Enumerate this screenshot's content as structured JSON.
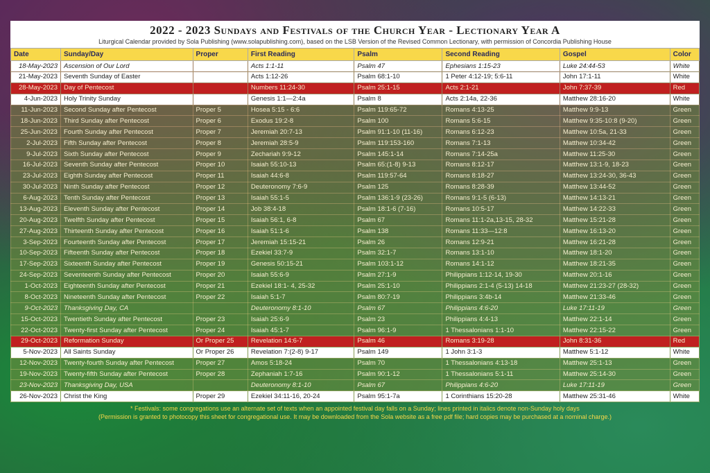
{
  "header": {
    "title": "2022 - 2023 Sundays and Festivals of the Church Year - Lectionary Year A",
    "subtitle": "Liturgical Calendar provided by Sola Publishing (www.solapublishing.com), based on the LSB Version of the Revised Common Lectionary, with permission of Concordia Publishing House"
  },
  "columns": [
    "Date",
    "Sunday/Day",
    "Proper",
    "First Reading",
    "Psalm",
    "Second Reading",
    "Gospel",
    "Color"
  ],
  "rows": [
    {
      "cls": "white italic",
      "c": [
        "18-May-2023",
        "Ascension of Our Lord",
        "",
        "Acts 1:1-11",
        "Psalm 47",
        "Ephesians 1:15-23",
        "Luke 24:44-53",
        "White"
      ]
    },
    {
      "cls": "white",
      "c": [
        "21-May-2023",
        "Seventh Sunday of Easter",
        "",
        "Acts 1:12-26",
        "Psalm 68:1-10",
        "1 Peter 4:12-19; 5:6-11",
        "John 17:1-11",
        "White"
      ]
    },
    {
      "cls": "red",
      "c": [
        "28-May-2023",
        "Day of Pentecost",
        "",
        "Numbers 11:24-30",
        "Psalm 25:1-15",
        "Acts 2:1-21",
        "John 7:37-39",
        "Red"
      ]
    },
    {
      "cls": "white",
      "c": [
        "4-Jun-2023",
        "Holy Trinity Sunday",
        "",
        "Genesis 1:1—2:4a",
        "Psalm 8",
        "Acts 2:14a, 22-36",
        "Matthew 28:16-20",
        "White"
      ]
    },
    {
      "cls": "green",
      "c": [
        "11-Jun-2023",
        "Second Sunday after Pentecost",
        "Proper 5",
        "Hosea 5:15 - 6:6",
        "Psalm 119:65-72",
        "Romans 4:13-25",
        "Matthew 9:9-13",
        "Green"
      ]
    },
    {
      "cls": "green",
      "c": [
        "18-Jun-2023",
        "Third Sunday after Pentecost",
        "Proper 6",
        "Exodus 19:2-8",
        "Psalm 100",
        "Romans 5:6-15",
        "Matthew 9:35-10:8 (9-20)",
        "Green"
      ]
    },
    {
      "cls": "green",
      "c": [
        "25-Jun-2023",
        "Fourth Sunday after Pentecost",
        "Proper 7",
        "Jeremiah 20:7-13",
        "Psalm 91:1-10 (11-16)",
        "Romans 6:12-23",
        "Matthew 10:5a, 21-33",
        "Green"
      ]
    },
    {
      "cls": "green",
      "c": [
        "2-Jul-2023",
        "Fifth Sunday after Pentecost",
        "Proper 8",
        "Jeremiah 28:5-9",
        "Psalm 119:153-160",
        "Romans 7:1-13",
        "Matthew 10:34-42",
        "Green"
      ]
    },
    {
      "cls": "green",
      "c": [
        "9-Jul-2023",
        "Sixth Sunday after Pentecost",
        "Proper 9",
        "Zechariah 9:9-12",
        "Psalm 145:1-14",
        "Romans 7:14-25a",
        "Matthew 11:25-30",
        "Green"
      ]
    },
    {
      "cls": "green",
      "c": [
        "16-Jul-2023",
        "Seventh Sunday after Pentecost",
        "Proper 10",
        "Isaiah 55:10-13",
        "Psalm 65:(1-8) 9-13",
        "Romans 8:12-17",
        "Matthew 13:1-9, 18-23",
        "Green"
      ]
    },
    {
      "cls": "green",
      "c": [
        "23-Jul-2023",
        "Eighth Sunday after Pentecost",
        "Proper 11",
        "Isaiah 44:6-8",
        "Psalm 119:57-64",
        "Romans 8:18-27",
        "Matthew 13:24-30, 36-43",
        "Green"
      ]
    },
    {
      "cls": "green",
      "c": [
        "30-Jul-2023",
        "Ninth Sunday after Pentecost",
        "Proper 12",
        "Deuteronomy 7:6-9",
        "Psalm 125",
        "Romans 8:28-39",
        "Matthew 13:44-52",
        "Green"
      ]
    },
    {
      "cls": "green",
      "c": [
        "6-Aug-2023",
        "Tenth Sunday after Pentecost",
        "Proper 13",
        "Isaiah 55:1-5",
        "Psalm 136:1-9 (23-26)",
        "Romans 9:1-5 (6-13)",
        "Matthew 14:13-21",
        "Green"
      ]
    },
    {
      "cls": "green",
      "c": [
        "13-Aug-2023",
        "Eleventh Sunday after Pentecost",
        "Proper 14",
        "Job 38:4-18",
        "Psalm 18:1-6 (7-16)",
        "Romans 10:5-17",
        "Matthew 14:22-33",
        "Green"
      ]
    },
    {
      "cls": "green",
      "c": [
        "20-Aug-2023",
        "Twelfth Sunday after Pentecost",
        "Proper 15",
        "Isaiah 56:1, 6-8",
        "Psalm 67",
        "Romans 11:1-2a,13-15, 28-32",
        "Matthew 15:21-28",
        "Green"
      ]
    },
    {
      "cls": "green",
      "c": [
        "27-Aug-2023",
        "Thirteenth Sunday after Pentecost",
        "Proper 16",
        "Isaiah 51:1-6",
        "Psalm 138",
        "Romans 11:33—12:8",
        "Matthew 16:13-20",
        "Green"
      ]
    },
    {
      "cls": "green",
      "c": [
        "3-Sep-2023",
        "Fourteenth Sunday after Pentecost",
        "Proper 17",
        "Jeremiah 15:15-21",
        "Psalm 26",
        "Romans 12:9-21",
        "Matthew 16:21-28",
        "Green"
      ]
    },
    {
      "cls": "green",
      "c": [
        "10-Sep-2023",
        "Fifteenth Sunday after Pentecost",
        "Proper 18",
        "Ezekiel 33:7-9",
        "Psalm 32:1-7",
        "Romans 13:1-10",
        "Matthew 18:1-20",
        "Green"
      ]
    },
    {
      "cls": "green",
      "c": [
        "17-Sep-2023",
        "Sixteenth Sunday after Pentecost",
        "Proper 19",
        "Genesis 50:15-21",
        "Psalm 103:1-12",
        "Romans 14:1-12",
        "Matthew 18:21-35",
        "Green"
      ]
    },
    {
      "cls": "green",
      "c": [
        "24-Sep-2023",
        "Seventeenth Sunday after Pentecost",
        "Proper 20",
        "Isaiah 55:6-9",
        "Psalm 27:1-9",
        "Philippians 1:12-14, 19-30",
        "Matthew 20:1-16",
        "Green"
      ]
    },
    {
      "cls": "green",
      "c": [
        "1-Oct-2023",
        "Eighteenth Sunday after Pentecost",
        "Proper 21",
        "Ezekiel 18:1- 4, 25-32",
        "Psalm 25:1-10",
        "Philippians 2:1-4 (5-13) 14-18",
        "Matthew 21:23-27 (28-32)",
        "Green"
      ]
    },
    {
      "cls": "green",
      "c": [
        "8-Oct-2023",
        "Nineteenth Sunday after Pentecost",
        "Proper 22",
        "Isaiah 5:1-7",
        "Psalm 80:7-19",
        "Philippians 3:4b-14",
        "Matthew 21:33-46",
        "Green"
      ]
    },
    {
      "cls": "green italic",
      "c": [
        "9-Oct-2023",
        "Thanksgiving Day, CA",
        "",
        "Deuteronomy 8:1-10",
        "Psalm 67",
        "Philippians 4:6-20",
        "Luke 17:11-19",
        "Green"
      ]
    },
    {
      "cls": "green",
      "c": [
        "15-Oct-2023",
        "Twentieth Sunday after Pentecost",
        "Proper 23",
        "Isaiah 25:6-9",
        "Psalm 23",
        "Philippians 4:4-13",
        "Matthew 22:1-14",
        "Green"
      ]
    },
    {
      "cls": "green",
      "c": [
        "22-Oct-2023",
        "Twenty-first Sunday after Pentecost",
        "Proper 24",
        "Isaiah 45:1-7",
        "Psalm 96:1-9",
        "1 Thessalonians 1:1-10",
        "Matthew 22:15-22",
        "Green"
      ]
    },
    {
      "cls": "red",
      "c": [
        "29-Oct-2023",
        "Reformation Sunday",
        "Or Proper 25",
        "Revelation 14:6-7",
        "Psalm 46",
        "Romans 3:19-28",
        "John 8:31-36",
        "Red"
      ]
    },
    {
      "cls": "white",
      "c": [
        "5-Nov-2023",
        "All Saints Sunday",
        "Or Proper 26",
        "Revelation 7:(2-8) 9-17",
        "Psalm 149",
        "1 John 3:1-3",
        "Matthew 5:1-12",
        "White"
      ]
    },
    {
      "cls": "green",
      "c": [
        "12-Nov-2023",
        "Twenty-fourth Sunday after Pentecost",
        "Proper 27",
        "Amos 5:18-24",
        "Psalm 70",
        "1 Thessalonians 4:13-18",
        "Matthew 25:1-13",
        "Green"
      ]
    },
    {
      "cls": "green",
      "c": [
        "19-Nov-2023",
        "Twenty-fifth Sunday after Pentecost",
        "Proper 28",
        "Zephaniah 1:7-16",
        "Psalm 90:1-12",
        "1 Thessalonians 5:1-11",
        "Matthew 25:14-30",
        "Green"
      ]
    },
    {
      "cls": "green italic",
      "c": [
        "23-Nov-2023",
        "Thanksgiving Day, USA",
        "",
        "Deuteronomy 8:1-10",
        "Psalm 67",
        "Philippians 4:6-20",
        "Luke 17:11-19",
        "Green"
      ]
    },
    {
      "cls": "white",
      "c": [
        "26-Nov-2023",
        "Christ the King",
        "Proper 29",
        "Ezekiel 34:11-16, 20-24",
        "Psalm 95:1-7a",
        "1 Corinthians 15:20-28",
        "Matthew 25:31-46",
        "White"
      ]
    }
  ],
  "footnote": {
    "line1": "* Festivals: some congregations use an alternate set of texts when an appointed festival day falls on a Sunday; lines printed in italics denote non-Sunday holy days",
    "line2": "(Permission is granted to photocopy this sheet for congregational use. It may be downloaded from the Sola website as a free pdf file; hard copies may be purchased at a nominal charge.)"
  },
  "colors": {
    "header_bg": "#f8d84a",
    "row_white": "#ffffff",
    "row_green": "rgba(120,140,60,0.55)",
    "row_red": "#c02020"
  }
}
